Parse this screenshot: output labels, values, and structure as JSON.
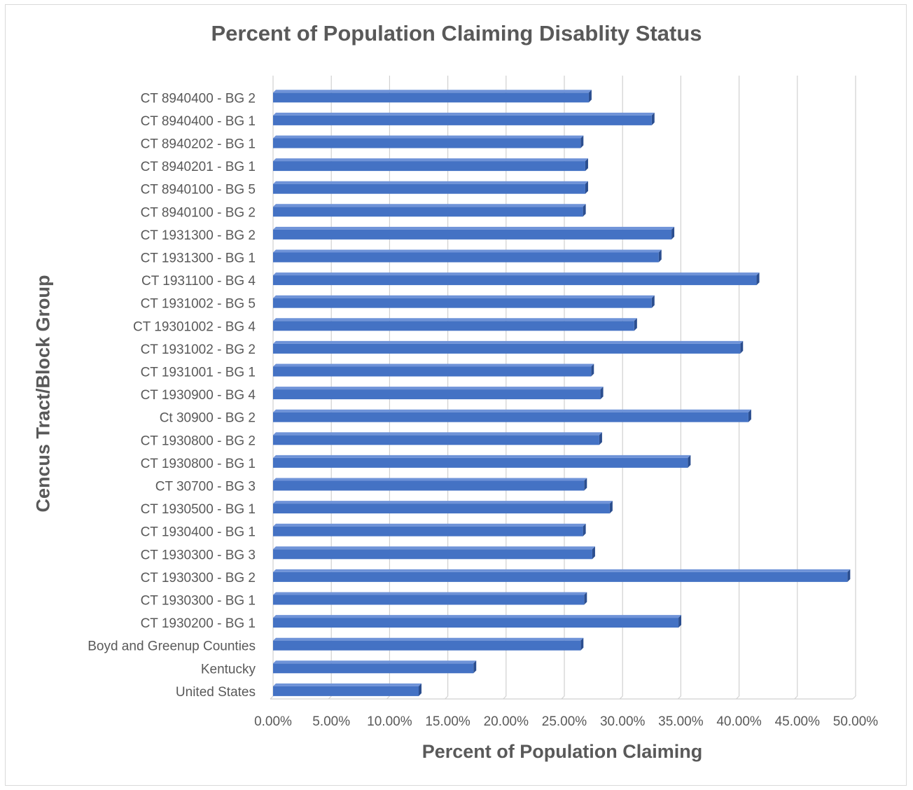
{
  "chart_data": {
    "type": "bar",
    "orientation": "horizontal",
    "title": "Percent of Population Claiming Disablity Status",
    "xlabel": "Percent of Population Claiming",
    "ylabel": "Cencus Tract/Block Group",
    "xlim": [
      0,
      0.5
    ],
    "x_ticks": [
      "0.00%",
      "5.00%",
      "10.00%",
      "15.00%",
      "20.00%",
      "25.00%",
      "30.00%",
      "35.00%",
      "40.00%",
      "45.00%",
      "50.00%"
    ],
    "grid": true,
    "bar_color": "#4472c4",
    "categories": [
      "CT 8940400 - BG 2",
      "CT 8940400 - BG 1",
      "CT 8940202 - BG 1",
      "CT 8940201 - BG 1",
      "CT 8940100 - BG 5",
      "CT 8940100 - BG 2",
      "CT 1931300 - BG 2",
      "CT 1931300 - BG 1",
      "CT 1931100 - BG 4",
      "CT 1931002 - BG 5",
      "CT 19301002 - BG 4",
      "CT 1931002 - BG 2",
      "CT 1931001 - BG 1",
      "CT 1930900 - BG 4",
      "Ct 30900 - BG 2",
      "CT 1930800 - BG 2",
      "CT 1930800 - BG 1",
      "CT 30700 - BG 3",
      "CT 1930500 - BG 1",
      "CT 1930400 - BG 1",
      "CT 1930300 - BG 3",
      "CT 1930300 - BG 2",
      "CT 1930300 - BG 1",
      "CT 1930200 - BG 1",
      "Boyd and Greenup Counties",
      "Kentucky",
      "United States"
    ],
    "values": [
      0.271,
      0.325,
      0.264,
      0.268,
      0.268,
      0.266,
      0.342,
      0.331,
      0.415,
      0.325,
      0.31,
      0.401,
      0.273,
      0.281,
      0.408,
      0.28,
      0.356,
      0.267,
      0.289,
      0.266,
      0.274,
      0.493,
      0.267,
      0.348,
      0.264,
      0.172,
      0.125
    ]
  }
}
